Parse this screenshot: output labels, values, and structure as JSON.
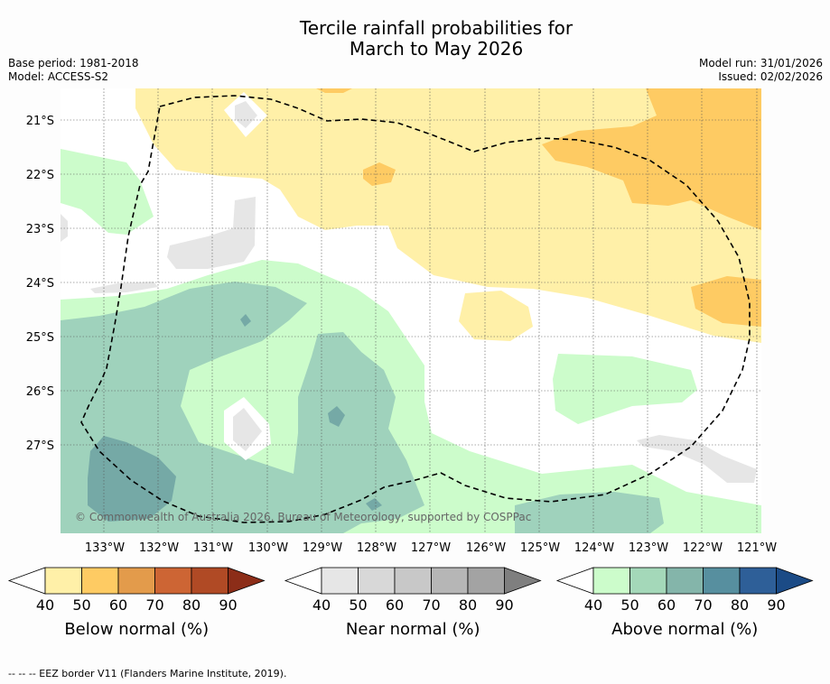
{
  "title": {
    "line1": "Tercile rainfall probabilities for",
    "line2": "March to May 2026"
  },
  "meta": {
    "base_period": "Base period: 1981-2018",
    "model": "Model: ACCESS-S2",
    "model_run": "Model run: 31/01/2026",
    "issued": "Issued: 02/02/2026"
  },
  "map": {
    "lat_labels": [
      "21°S",
      "22°S",
      "23°S",
      "24°S",
      "25°S",
      "26°S",
      "27°S"
    ],
    "lon_labels": [
      "133°W",
      "132°W",
      "131°W",
      "130°W",
      "129°W",
      "128°W",
      "127°W",
      "126°W",
      "125°W",
      "124°W",
      "123°W",
      "122°W",
      "121°W"
    ],
    "copyright": "© Commonwealth of Australia 2026, Bureau of Meteorology, supported by COSPPac"
  },
  "colorbars": [
    {
      "label": "Below normal (%)",
      "ticks": [
        "40",
        "50",
        "60",
        "70",
        "80",
        "90"
      ],
      "colors": [
        "#fff0a8",
        "#fecb63",
        "#e39b4b",
        "#cd6534",
        "#b04a25",
        "#8c2d18"
      ]
    },
    {
      "label": "Near normal (%)",
      "ticks": [
        "40",
        "50",
        "60",
        "70",
        "80",
        "90"
      ],
      "colors": [
        "#e6e6e6",
        "#d8d8d8",
        "#c8c8c8",
        "#b6b6b6",
        "#a3a3a3",
        "#7f7f7f"
      ]
    },
    {
      "label": "Above normal (%)",
      "ticks": [
        "40",
        "50",
        "60",
        "70",
        "80",
        "90"
      ],
      "colors": [
        "#ccfccb",
        "#a4d8b9",
        "#84b5aa",
        "#578f9f",
        "#2e5f98",
        "#1b4b86"
      ]
    }
  ],
  "footer": "--  --  -- EEZ border V11 (Flanders Marine Institute, 2019)."
}
